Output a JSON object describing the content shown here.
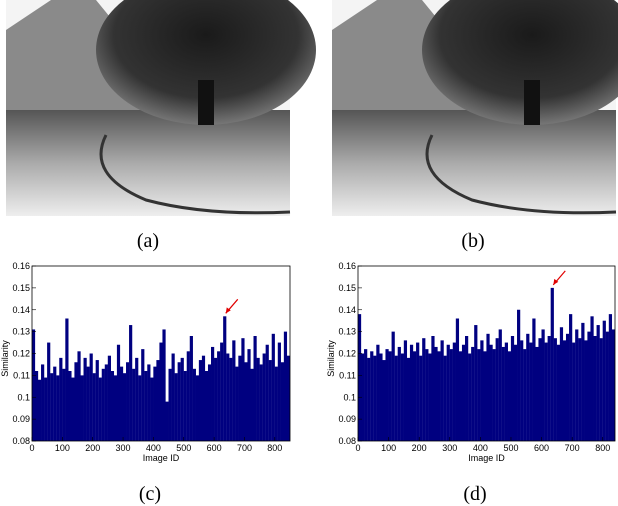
{
  "figure": {
    "panels": [
      {
        "caption": "(a)"
      },
      {
        "caption": "(b)"
      }
    ]
  },
  "chart_data": [
    {
      "type": "bar",
      "caption": "(c)",
      "xlabel": "Image ID",
      "ylabel": "Similarity",
      "color": "#000080",
      "annotation_color": "#e00000",
      "xlim": [
        0,
        850
      ],
      "xticks": [
        0,
        100,
        200,
        300,
        400,
        500,
        600,
        700,
        800
      ],
      "ylim": [
        0.08,
        0.16
      ],
      "yticks": [
        0.08,
        0.09,
        0.1,
        0.11,
        0.12,
        0.13,
        0.14,
        0.15,
        0.16
      ],
      "x": [
        5,
        15,
        25,
        35,
        45,
        55,
        65,
        75,
        85,
        95,
        105,
        115,
        125,
        135,
        145,
        155,
        165,
        175,
        185,
        195,
        205,
        215,
        225,
        235,
        245,
        255,
        265,
        275,
        285,
        295,
        305,
        315,
        325,
        335,
        345,
        355,
        365,
        375,
        385,
        395,
        405,
        415,
        425,
        435,
        445,
        455,
        465,
        475,
        485,
        495,
        505,
        515,
        525,
        535,
        545,
        555,
        565,
        575,
        585,
        595,
        605,
        615,
        625,
        635,
        645,
        655,
        665,
        675,
        685,
        695,
        705,
        715,
        725,
        735,
        745,
        755,
        765,
        775,
        785,
        795,
        805,
        815,
        825,
        835,
        845
      ],
      "values": [
        0.131,
        0.112,
        0.108,
        0.115,
        0.109,
        0.125,
        0.111,
        0.114,
        0.11,
        0.118,
        0.113,
        0.136,
        0.112,
        0.109,
        0.116,
        0.121,
        0.11,
        0.118,
        0.114,
        0.12,
        0.111,
        0.117,
        0.109,
        0.113,
        0.115,
        0.119,
        0.112,
        0.11,
        0.124,
        0.114,
        0.111,
        0.116,
        0.133,
        0.113,
        0.118,
        0.11,
        0.122,
        0.112,
        0.115,
        0.109,
        0.114,
        0.117,
        0.125,
        0.131,
        0.098,
        0.113,
        0.12,
        0.111,
        0.116,
        0.118,
        0.112,
        0.121,
        0.128,
        0.113,
        0.11,
        0.117,
        0.119,
        0.112,
        0.115,
        0.123,
        0.118,
        0.121,
        0.125,
        0.137,
        0.12,
        0.118,
        0.126,
        0.114,
        0.119,
        0.127,
        0.116,
        0.122,
        0.113,
        0.128,
        0.118,
        0.115,
        0.12,
        0.124,
        0.117,
        0.129,
        0.114,
        0.125,
        0.116,
        0.13,
        0.119
      ]
    },
    {
      "type": "bar",
      "caption": "(d)",
      "xlabel": "Image ID",
      "ylabel": "Similarity",
      "color": "#000080",
      "annotation_color": "#e00000",
      "xlim": [
        0,
        840
      ],
      "xticks": [
        0,
        100,
        200,
        300,
        400,
        500,
        600,
        700,
        800
      ],
      "ylim": [
        0.08,
        0.16
      ],
      "yticks": [
        0.08,
        0.09,
        0.1,
        0.11,
        0.12,
        0.13,
        0.14,
        0.15,
        0.16
      ],
      "x": [
        5,
        15,
        25,
        35,
        45,
        55,
        65,
        75,
        85,
        95,
        105,
        115,
        125,
        135,
        145,
        155,
        165,
        175,
        185,
        195,
        205,
        215,
        225,
        235,
        245,
        255,
        265,
        275,
        285,
        295,
        305,
        315,
        325,
        335,
        345,
        355,
        365,
        375,
        385,
        395,
        405,
        415,
        425,
        435,
        445,
        455,
        465,
        475,
        485,
        495,
        505,
        515,
        525,
        535,
        545,
        555,
        565,
        575,
        585,
        595,
        605,
        615,
        625,
        635,
        645,
        655,
        665,
        675,
        685,
        695,
        705,
        715,
        725,
        735,
        745,
        755,
        765,
        775,
        785,
        795,
        805,
        815,
        825,
        835
      ],
      "values": [
        0.138,
        0.12,
        0.122,
        0.118,
        0.121,
        0.119,
        0.124,
        0.12,
        0.117,
        0.122,
        0.121,
        0.13,
        0.119,
        0.123,
        0.12,
        0.126,
        0.118,
        0.124,
        0.121,
        0.125,
        0.119,
        0.127,
        0.122,
        0.12,
        0.128,
        0.123,
        0.121,
        0.126,
        0.119,
        0.124,
        0.122,
        0.125,
        0.136,
        0.121,
        0.124,
        0.128,
        0.12,
        0.123,
        0.133,
        0.122,
        0.126,
        0.121,
        0.129,
        0.124,
        0.122,
        0.127,
        0.131,
        0.123,
        0.125,
        0.121,
        0.128,
        0.124,
        0.14,
        0.126,
        0.122,
        0.129,
        0.125,
        0.136,
        0.123,
        0.127,
        0.131,
        0.125,
        0.128,
        0.15,
        0.127,
        0.124,
        0.132,
        0.126,
        0.129,
        0.138,
        0.125,
        0.131,
        0.127,
        0.134,
        0.126,
        0.13,
        0.137,
        0.128,
        0.133,
        0.127,
        0.135,
        0.13,
        0.138,
        0.131
      ]
    }
  ]
}
